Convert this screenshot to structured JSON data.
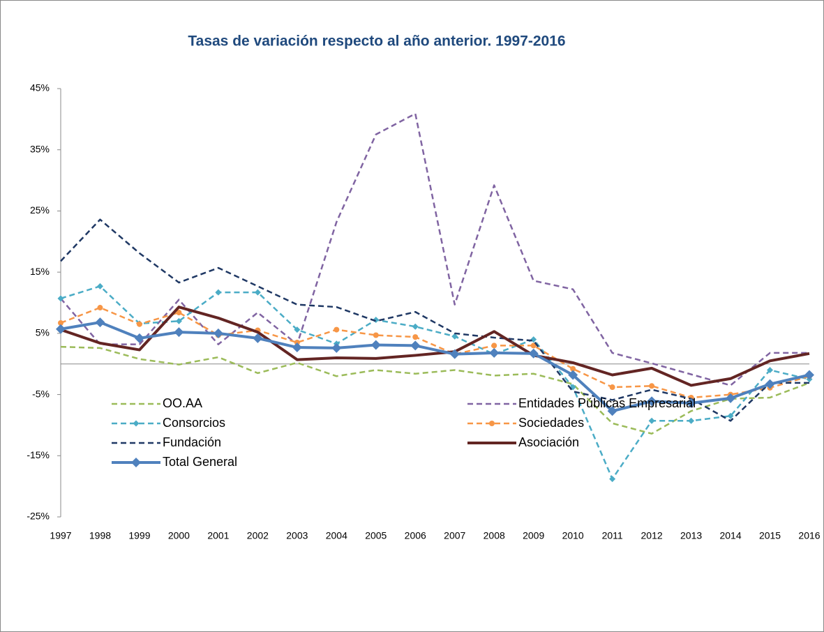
{
  "chart_data": {
    "type": "line",
    "title": "Tasas de variación respecto al año anterior. 1997-2016",
    "categories": [
      "1997",
      "1998",
      "1999",
      "2000",
      "2001",
      "2002",
      "2003",
      "2004",
      "2005",
      "2006",
      "2007",
      "2008",
      "2009",
      "2010",
      "2011",
      "2012",
      "2013",
      "2014",
      "2015",
      "2016"
    ],
    "ylim": [
      -25,
      45
    ],
    "yticks": [
      {
        "value": -25,
        "label": "-25%"
      },
      {
        "value": -15,
        "label": "-15%"
      },
      {
        "value": -5,
        "label": "-5%"
      },
      {
        "value": 5,
        "label": "5%"
      },
      {
        "value": 15,
        "label": "15%"
      },
      {
        "value": 25,
        "label": "25%"
      },
      {
        "value": 35,
        "label": "35%"
      },
      {
        "value": 45,
        "label": "45%"
      }
    ],
    "grid": false,
    "legend": "bottom",
    "series": [
      {
        "name": "OO.AA",
        "color": "#9bbb59",
        "line": "dashed",
        "marker": null,
        "values": [
          2.8,
          2.6,
          0.8,
          -0.1,
          1.1,
          -1.5,
          0.2,
          -2,
          -1,
          -1.6,
          -1,
          -1.9,
          -1.6,
          -3.3,
          -9.7,
          -11.4,
          -7.7,
          -5.7,
          -5.5,
          -3.1
        ]
      },
      {
        "name": "Entidades Públicas Empresarial",
        "color": "#8064a2",
        "line": "dashed",
        "marker": null,
        "values": [
          10.7,
          3.2,
          3.2,
          10.5,
          3.2,
          8.4,
          3.2,
          23.2,
          37.5,
          40.9,
          9.7,
          29.2,
          13.6,
          12.2,
          1.8,
          0.1,
          -1.7,
          -3.5,
          1.8,
          1.8
        ]
      },
      {
        "name": "Consorcios",
        "color": "#4bacc6",
        "line": "dashed",
        "marker": "diamond",
        "values": [
          10.7,
          12.7,
          6.6,
          7,
          11.7,
          11.7,
          5.6,
          3.3,
          7.2,
          6.1,
          4.5,
          1.6,
          4,
          -3.8,
          -18.8,
          -9.3,
          -9.3,
          -8.5,
          -1,
          -2.5
        ]
      },
      {
        "name": "Sociedades",
        "color": "#f79646",
        "line": "dashed",
        "marker": "circle",
        "values": [
          6.7,
          9.2,
          6.5,
          8.4,
          4.7,
          5.5,
          3.5,
          5.6,
          4.7,
          4.4,
          1.6,
          3,
          3,
          -0.8,
          -3.8,
          -3.6,
          -5.5,
          -5,
          -3.9,
          -2
        ]
      },
      {
        "name": "Fundación",
        "color": "#1f3864",
        "line": "dashed",
        "marker": null,
        "values": [
          16.8,
          23.6,
          18.1,
          13.3,
          15.7,
          12.7,
          9.7,
          9.3,
          7,
          8.5,
          5,
          4.3,
          3.8,
          -4.5,
          -5.9,
          -4.2,
          -5.7,
          -9.3,
          -3.1,
          -3.1
        ]
      },
      {
        "name": "Asociación",
        "color": "#632523",
        "line": "thick",
        "marker": null,
        "values": [
          5.6,
          3.4,
          2.3,
          9.3,
          7.5,
          5.2,
          0.7,
          1,
          0.9,
          1.4,
          2,
          5.3,
          1.4,
          0.2,
          -1.8,
          -0.7,
          -3.5,
          -2.4,
          0.5,
          1.7
        ]
      },
      {
        "name": "Total General",
        "color": "#4f81bd",
        "line": "thick",
        "marker": "bigdiamond",
        "values": [
          5.7,
          6.8,
          4.2,
          5.2,
          5,
          4.2,
          2.7,
          2.6,
          3.1,
          3,
          1.6,
          1.8,
          1.7,
          -1.8,
          -7.7,
          -6.1,
          -6.4,
          -5.6,
          -3.3,
          -1.8
        ]
      }
    ]
  }
}
